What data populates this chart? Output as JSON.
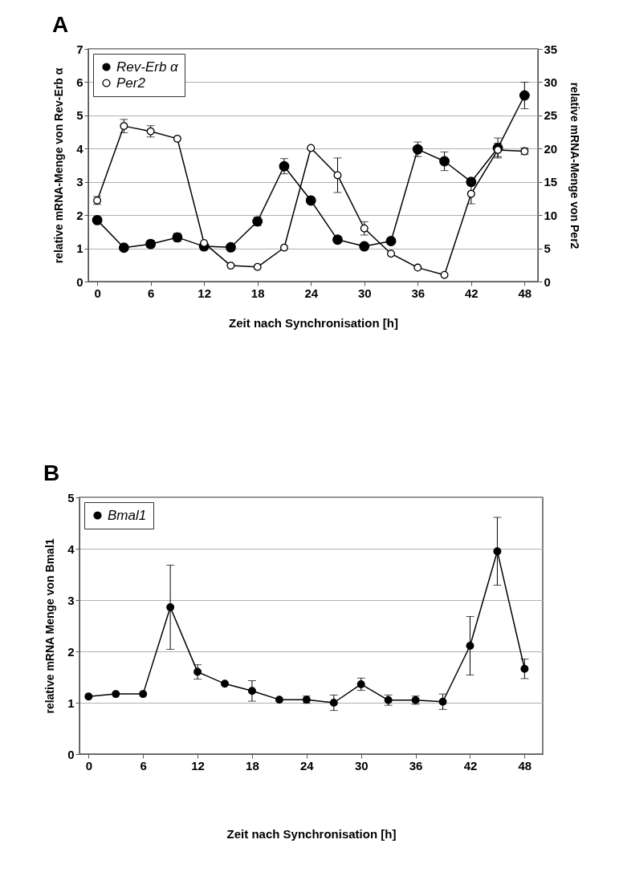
{
  "chart_data": [
    {
      "type": "line",
      "title": "A",
      "xlabel": "Zeit nach Synchronisation [h]",
      "ylabel": "relative mRNA-Menge von  Rev-Erb α",
      "y2label": "relative mRNA-Menge von  Per2",
      "x": [
        0,
        3,
        6,
        9,
        12,
        15,
        18,
        21,
        24,
        27,
        30,
        33,
        36,
        39,
        42,
        45,
        48
      ],
      "xlim": [
        -1,
        49.5
      ],
      "xticks": [
        0,
        6,
        12,
        18,
        24,
        30,
        36,
        42,
        48
      ],
      "ylim": [
        0,
        7
      ],
      "yticks": [
        0,
        1,
        2,
        3,
        4,
        5,
        6,
        7
      ],
      "y2lim": [
        0,
        35
      ],
      "y2ticks": [
        0,
        5,
        10,
        15,
        20,
        25,
        30,
        35
      ],
      "grid": "y",
      "legend": "top left",
      "marker": "circle",
      "line_style": "solid",
      "series": [
        {
          "name": "Rev-Erb α",
          "color": "#000000",
          "values": [
            1.85,
            1.02,
            1.13,
            1.33,
            1.06,
            1.03,
            1.81,
            3.47,
            2.44,
            1.26,
            1.06,
            1.22,
            3.98,
            3.62,
            3.0,
            4.02,
            5.6
          ],
          "errors": [
            null,
            null,
            0.1,
            0.12,
            0.1,
            null,
            0.13,
            0.23,
            null,
            null,
            null,
            null,
            0.22,
            0.28,
            0.1,
            0.3,
            0.4
          ]
        },
        {
          "name": "Per2",
          "color": "#000000",
          "axis": "y2",
          "values": [
            12.2,
            23.4,
            22.6,
            21.5,
            5.8,
            2.4,
            2.2,
            5.1,
            20.1,
            16,
            8,
            4.2,
            2.1,
            1.0,
            13.2,
            19.8,
            19.6
          ],
          "errors": [
            0.6,
            1,
            0.85,
            null,
            null,
            null,
            null,
            null,
            null,
            2.6,
            1,
            null,
            null,
            null,
            1.5,
            1,
            0.5
          ]
        }
      ]
    },
    {
      "type": "line",
      "title": "B",
      "xlabel": "Zeit nach Synchronisation [h]",
      "ylabel": "relative mRNA Menge von  Bmal1",
      "x": [
        0,
        3,
        6,
        9,
        12,
        15,
        18,
        21,
        24,
        27,
        30,
        33,
        36,
        39,
        42,
        45,
        48
      ],
      "xlim": [
        -1,
        50
      ],
      "xticks": [
        0,
        6,
        12,
        18,
        24,
        30,
        36,
        42,
        48
      ],
      "ylim": [
        0,
        5
      ],
      "yticks": [
        0,
        1,
        2,
        3,
        4,
        5
      ],
      "grid": "y",
      "legend": "top left",
      "marker": "circle",
      "line_style": "solid",
      "series": [
        {
          "name": "Bmal1",
          "color": "#000000",
          "values": [
            1.12,
            1.17,
            1.17,
            2.86,
            1.6,
            1.37,
            1.23,
            1.06,
            1.06,
            1.0,
            1.36,
            1.05,
            1.05,
            1.02,
            2.11,
            3.95,
            1.66
          ],
          "errors": [
            null,
            null,
            null,
            0.82,
            0.14,
            null,
            0.2,
            null,
            0.07,
            0.15,
            0.12,
            0.1,
            0.08,
            0.15,
            0.57,
            0.66,
            0.19
          ]
        }
      ]
    }
  ]
}
